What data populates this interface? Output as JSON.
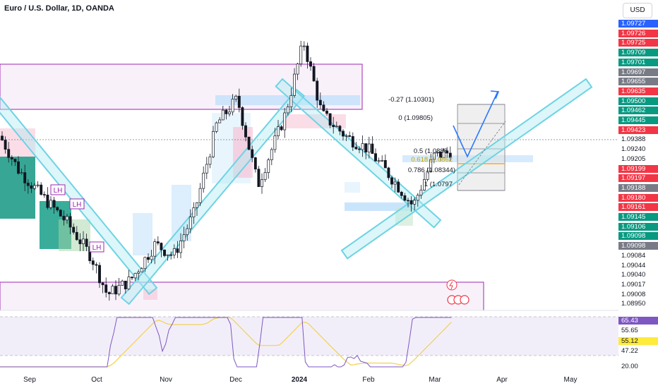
{
  "header": {
    "title": "Euro / U.S. Dollar, 1D, OANDA",
    "currency_button": "USD"
  },
  "price_axis": {
    "labels": [
      {
        "text": "1.09727",
        "bg": "#2962ff",
        "fg": "#ffffff"
      },
      {
        "text": "1.09726",
        "bg": "#f23645",
        "fg": "#ffffff"
      },
      {
        "text": "1.09725",
        "bg": "#f23645",
        "fg": "#ffffff"
      },
      {
        "text": "1.09709",
        "bg": "#089981",
        "fg": "#ffffff"
      },
      {
        "text": "1.09701",
        "bg": "#089981",
        "fg": "#ffffff"
      },
      {
        "text": "1.09697",
        "bg": "#787b86",
        "fg": "#ffffff"
      },
      {
        "text": "1.09655",
        "bg": "#787b86",
        "fg": "#ffffff"
      },
      {
        "text": "1.09635",
        "bg": "#f23645",
        "fg": "#ffffff"
      },
      {
        "text": "1.09500",
        "bg": "#089981",
        "fg": "#ffffff"
      },
      {
        "text": "1.09462",
        "bg": "#089981",
        "fg": "#ffffff"
      },
      {
        "text": "1.09445",
        "bg": "#089981",
        "fg": "#ffffff"
      },
      {
        "text": "1.09423",
        "bg": "#f23645",
        "fg": "#ffffff"
      },
      {
        "text": "1.09388",
        "bg": "#ffffff",
        "fg": "#131722"
      },
      {
        "text": "1.09240",
        "bg": "#ffffff",
        "fg": "#131722"
      },
      {
        "text": "1.09205",
        "bg": "#ffffff",
        "fg": "#131722"
      },
      {
        "text": "1.09199",
        "bg": "#f23645",
        "fg": "#ffffff"
      },
      {
        "text": "1.09197",
        "bg": "#f23645",
        "fg": "#ffffff"
      },
      {
        "text": "1.09188",
        "bg": "#787b86",
        "fg": "#ffffff"
      },
      {
        "text": "1.09180",
        "bg": "#f23645",
        "fg": "#ffffff"
      },
      {
        "text": "1.09161",
        "bg": "#f23645",
        "fg": "#ffffff"
      },
      {
        "text": "1.09145",
        "bg": "#089981",
        "fg": "#ffffff"
      },
      {
        "text": "1.09106",
        "bg": "#089981",
        "fg": "#ffffff"
      },
      {
        "text": "1.09098",
        "bg": "#089981",
        "fg": "#ffffff"
      },
      {
        "text": "1.09098",
        "bg": "#787b86",
        "fg": "#ffffff"
      },
      {
        "text": "1.09084",
        "bg": "#ffffff",
        "fg": "#131722"
      },
      {
        "text": "1.09044",
        "bg": "#ffffff",
        "fg": "#131722"
      },
      {
        "text": "1.09040",
        "bg": "#ffffff",
        "fg": "#131722"
      },
      {
        "text": "1.09017",
        "bg": "#ffffff",
        "fg": "#131722"
      },
      {
        "text": "1.09008",
        "bg": "#ffffff",
        "fg": "#131722"
      },
      {
        "text": "1.08950",
        "bg": "#ffffff",
        "fg": "#131722"
      }
    ]
  },
  "rsi_axis": {
    "labels": [
      {
        "text": "65.43",
        "bg": "#7e57c2",
        "fg": "#ffffff"
      },
      {
        "text": "55.65",
        "bg": "#ffffff",
        "fg": "#131722"
      },
      {
        "text": "55.12",
        "bg": "#ffeb3b",
        "fg": "#131722"
      },
      {
        "text": "47.22",
        "bg": "#ffffff",
        "fg": "#131722"
      },
      {
        "text": "20.00",
        "bg": "#ffffff",
        "fg": "#131722"
      }
    ]
  },
  "time_axis": {
    "labels": [
      "Sep",
      "Oct",
      "Nov",
      "Dec",
      "2024",
      "Feb",
      "Mar",
      "Apr",
      "May"
    ]
  },
  "annotations": {
    "lh_labels": [
      "LH",
      "LH",
      "LH"
    ],
    "fib_levels": [
      {
        "text": "-0.27 (1.10301)"
      },
      {
        "text": "0 (1.09805)"
      },
      {
        "text": "0.5 (1.0888"
      },
      {
        "text": "0.618 (1.0862"
      },
      {
        "text": "0.786 (1.08344)"
      },
      {
        "text": "1 (1.0797"
      }
    ]
  },
  "colors": {
    "up": "#089981",
    "down": "#f23645",
    "channel": "#6ed3e4",
    "zone": "#9c27b0",
    "rsi": "#7e57c2",
    "rsi_ma": "#f3d35a",
    "arrow": "#2979ff"
  },
  "chart_data": {
    "type": "candlestick",
    "instrument": "Euro / U.S. Dollar",
    "timeframe": "1D",
    "ylim": [
      1.044,
      1.1054
    ],
    "close_trend": [
      [
        "2023-08-15",
        1.0905
      ],
      [
        "2023-08-25",
        1.0795
      ],
      [
        "2023-09-05",
        1.0722
      ],
      [
        "2023-09-15",
        1.066
      ],
      [
        "2023-09-26",
        1.0568
      ],
      [
        "2023-10-03",
        1.0468
      ],
      [
        "2023-10-13",
        1.0505
      ],
      [
        "2023-10-24",
        1.06
      ],
      [
        "2023-11-01",
        1.057
      ],
      [
        "2023-11-10",
        1.068
      ],
      [
        "2023-11-20",
        1.0915
      ],
      [
        "2023-11-29",
        1.098
      ],
      [
        "2023-12-08",
        1.0755
      ],
      [
        "2023-12-20",
        1.094
      ],
      [
        "2023-12-28",
        1.113
      ],
      [
        "2024-01-05",
        1.094
      ],
      [
        "2024-01-16",
        1.088
      ],
      [
        "2024-01-25",
        1.085
      ],
      [
        "2024-02-05",
        1.077
      ],
      [
        "2024-02-14",
        1.07
      ],
      [
        "2024-02-23",
        1.083
      ],
      [
        "2024-03-01",
        1.084
      ],
      [
        "2024-03-08",
        1.094
      ]
    ],
    "rsi": {
      "name": "RSI",
      "period_labels": [],
      "last": 65.43,
      "ma_last": 55.12
    }
  }
}
